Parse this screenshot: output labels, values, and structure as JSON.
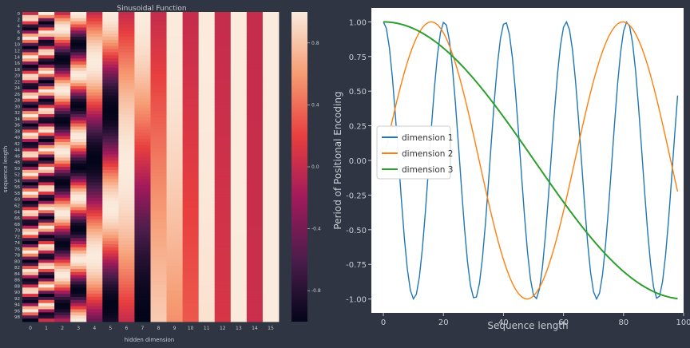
{
  "chart_data": [
    {
      "type": "heatmap",
      "title": "Sinusoidal Function",
      "xlabel": "hidden dimension",
      "ylabel": "sequence length",
      "x_ticks": [
        "0",
        "1",
        "2",
        "3",
        "4",
        "5",
        "6",
        "7",
        "8",
        "9",
        "10",
        "11",
        "12",
        "13",
        "14",
        "15"
      ],
      "y_ticks": [
        "0",
        "2",
        "4",
        "6",
        "8",
        "10",
        "12",
        "14",
        "16",
        "18",
        "20",
        "22",
        "24",
        "26",
        "28",
        "30",
        "32",
        "34",
        "36",
        "38",
        "40",
        "42",
        "44",
        "46",
        "48",
        "50",
        "52",
        "54",
        "56",
        "58",
        "60",
        "62",
        "64",
        "66",
        "68",
        "70",
        "72",
        "74",
        "76",
        "78",
        "80",
        "82",
        "84",
        "86",
        "88",
        "90",
        "92",
        "94",
        "96",
        "98"
      ],
      "rows": 100,
      "cols": 16,
      "d_model": 16,
      "value_range": [
        -1,
        1
      ],
      "colorbar_ticks": [
        "0.8",
        "0.4",
        "0.0",
        "-0.4",
        "-0.8"
      ],
      "colorbar_tick_values": [
        0.8,
        0.4,
        0.0,
        -0.4,
        -0.8
      ],
      "colormap": [
        "#03051a",
        "#4c1d4b",
        "#a11a5b",
        "#e83f3f",
        "#f69c73",
        "#faebdd"
      ]
    },
    {
      "type": "line",
      "xlabel": "Sequence length",
      "ylabel": "Period of Positional Encoding",
      "xlim": [
        -4,
        100
      ],
      "ylim": [
        -1.1,
        1.1
      ],
      "x_ticks": [
        "0",
        "20",
        "40",
        "60",
        "80",
        "100"
      ],
      "x_tick_values": [
        0,
        20,
        40,
        60,
        80,
        100
      ],
      "y_ticks": [
        "1.00",
        "0.75",
        "0.50",
        "0.25",
        "0.00",
        "-0.25",
        "-0.50",
        "-0.75",
        "-1.00"
      ],
      "y_tick_values": [
        1.0,
        0.75,
        0.5,
        0.25,
        0.0,
        -0.25,
        -0.5,
        -0.75,
        -1.0
      ],
      "legend_position": "center-left",
      "series": [
        {
          "name": "dimension 1",
          "color": "#1f77b4",
          "function": "cos",
          "period": 20.3,
          "x": [
            0,
            98
          ]
        },
        {
          "name": "dimension 2",
          "color": "#ff7f0e",
          "function": "sin",
          "period": 63.8,
          "x": [
            0,
            98
          ]
        },
        {
          "name": "dimension 3",
          "color": "#2ca02c",
          "function": "cos",
          "period": 201,
          "x": [
            0,
            98
          ]
        }
      ]
    }
  ]
}
